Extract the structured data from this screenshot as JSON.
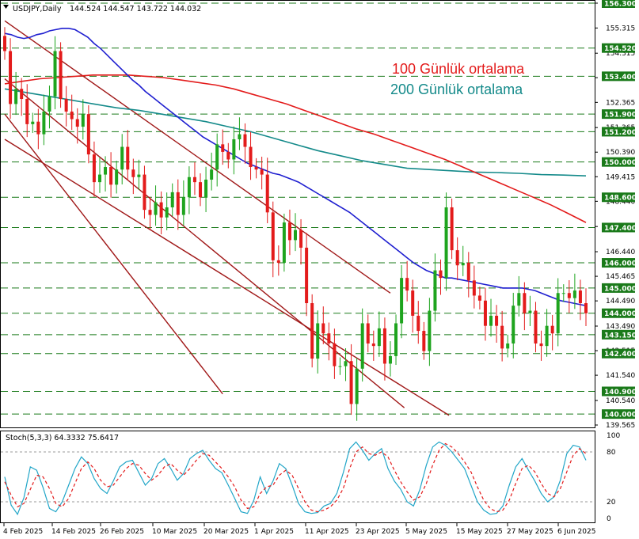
{
  "title": "USDJPY,Daily",
  "ohlc_text": "144.524 144.547 143.722 144.032",
  "legend": [
    {
      "label": "100 Günlük ortalama",
      "color": "#e31b1b"
    },
    {
      "label": "200 Günlük ortalama",
      "color": "#148a8a"
    }
  ],
  "stoch_label": "Stoch(5,3,3) 64.3332 75.6417",
  "colors": {
    "bull": "#1ea41e",
    "bear": "#e31b1b",
    "ma50": "#1f1fd0",
    "ma100": "#e31b1b",
    "ma200": "#148a8a",
    "channel": "#a01818",
    "levels": "#1a7a1a",
    "stoch_main": "#22a6c8",
    "stoch_signal": "#e31b1b"
  },
  "price_ticks": [
    "156.300",
    "155.315",
    "154.315",
    "153.345",
    "152.365",
    "151.365",
    "150.390",
    "149.415",
    "148.440",
    "147.440",
    "146.440",
    "145.465",
    "144.490",
    "143.490",
    "142.515",
    "141.540",
    "140.540",
    "139.565"
  ],
  "levels": [
    "156.300",
    "154.520",
    "153.400",
    "151.900",
    "151.200",
    "150.000",
    "148.600",
    "147.400",
    "146.000",
    "145.000",
    "144.000",
    "143.150",
    "142.400",
    "140.900",
    "140.000"
  ],
  "stoch_ticks": [
    "100",
    "80",
    "20",
    "0"
  ],
  "date_labels": [
    "4 Feb 2025",
    "14 Feb 2025",
    "26 Feb 2025",
    "10 Mar 2025",
    "20 Mar 2025",
    "1 Apr 2025",
    "11 Apr 2025",
    "23 Apr 2025",
    "5 May 2025",
    "15 May 2025",
    "27 May 2025",
    "6 Jun 2025"
  ],
  "chart_data": {
    "type": "candlestick",
    "symbol": "USDJPY",
    "timeframe": "Daily",
    "ylim": [
      139.5,
      156.3
    ],
    "stoch_ylim": [
      0,
      100
    ],
    "closes": [
      154.4,
      152.3,
      152.9,
      152.5,
      151.5,
      151.6,
      151.1,
      152.0,
      152.6,
      154.4,
      152.5,
      152.0,
      151.7,
      151.4,
      151.9,
      150.3,
      149.2,
      149.5,
      149.8,
      149.1,
      149.7,
      150.6,
      149.7,
      149.4,
      149.5,
      148.1,
      147.9,
      148.4,
      147.8,
      148.2,
      148.8,
      147.9,
      148.6,
      149.4,
      149.2,
      148.6,
      149.3,
      149.7,
      150.7,
      150.4,
      150.1,
      150.9,
      151.1,
      150.6,
      149.8,
      149.7,
      149.5,
      148.0,
      146.1,
      146.0,
      147.6,
      146.9,
      147.3,
      146.6,
      144.4,
      142.2,
      143.6,
      143.2,
      142.8,
      141.9,
      141.9,
      142.1,
      140.4,
      141.8,
      143.6,
      142.8,
      142.7,
      143.4,
      142.0,
      142.3,
      143.6,
      145.4,
      144.9,
      143.9,
      143.3,
      142.5,
      144.1,
      145.7,
      145.4,
      148.2,
      146.5,
      145.9,
      146.0,
      145.3,
      144.7,
      144.5,
      143.5,
      143.9,
      143.5,
      142.6,
      142.8,
      144.3,
      144.8,
      144.0,
      144.1,
      142.8,
      142.7,
      143.5,
      143.2,
      144.8,
      144.8,
      144.6,
      144.9,
      144.4,
      144.0
    ],
    "ma50": [
      155.1,
      155.05,
      154.95,
      154.9,
      154.95,
      155.05,
      155.1,
      155.2,
      155.25,
      155.3,
      155.3,
      155.25,
      155.1,
      154.95,
      154.7,
      154.5,
      154.25,
      154.0,
      153.75,
      153.5,
      153.25,
      153.05,
      152.8,
      152.6,
      152.4,
      152.2,
      152.0,
      151.8,
      151.6,
      151.4,
      151.2,
      151.0,
      150.85,
      150.7,
      150.55,
      150.4,
      150.25,
      150.1,
      149.95,
      149.85,
      149.75,
      149.65,
      149.55,
      149.5,
      149.4,
      149.3,
      149.2,
      149.05,
      148.9,
      148.75,
      148.6,
      148.45,
      148.3,
      148.15,
      148.0,
      147.8,
      147.6,
      147.4,
      147.2,
      147.0,
      146.8,
      146.6,
      146.4,
      146.2,
      146.0,
      145.85,
      145.7,
      145.6,
      145.5,
      145.4,
      145.4,
      145.35,
      145.3,
      145.25,
      145.2,
      145.15,
      145.1,
      145.05,
      145.0,
      145.0,
      145.0,
      145.0,
      144.95,
      144.9,
      144.8,
      144.7,
      144.6,
      144.5,
      144.45,
      144.4,
      144.35,
      144.3
    ],
    "ma100": [
      153.1,
      153.2,
      153.3,
      153.35,
      153.4,
      153.45,
      153.45,
      153.45,
      153.4,
      153.35,
      153.25,
      153.15,
      153.05,
      152.9,
      152.7,
      152.5,
      152.3,
      152.05,
      151.8,
      151.55,
      151.3,
      151.1,
      150.85,
      150.6,
      150.35,
      150.1,
      149.8,
      149.5,
      149.2,
      148.9,
      148.6,
      148.3,
      147.95,
      147.6
    ],
    "ma200": [
      152.9,
      152.75,
      152.6,
      152.45,
      152.3,
      152.15,
      152.05,
      151.9,
      151.75,
      151.6,
      151.4,
      151.2,
      150.95,
      150.7,
      150.45,
      150.25,
      150.05,
      149.9,
      149.75,
      149.7,
      149.65,
      149.6,
      149.58,
      149.55,
      149.5,
      149.48,
      149.45
    ],
    "stoch_main": [
      50,
      16,
      5,
      25,
      62,
      58,
      37,
      12,
      8,
      20,
      40,
      60,
      74,
      66,
      48,
      36,
      30,
      45,
      62,
      68,
      70,
      55,
      40,
      48,
      66,
      72,
      60,
      46,
      54,
      72,
      78,
      82,
      70,
      60,
      55,
      40,
      24,
      8,
      6,
      22,
      50,
      30,
      45,
      66,
      60,
      40,
      18,
      8,
      6,
      7,
      15,
      18,
      30,
      55,
      84,
      92,
      82,
      70,
      78,
      84,
      60,
      45,
      35,
      20,
      15,
      35,
      64,
      86,
      92,
      88,
      80,
      70,
      60,
      40,
      20,
      10,
      5,
      6,
      15,
      40,
      62,
      72,
      58,
      45,
      30,
      20,
      26,
      46,
      78,
      88,
      86,
      70
    ],
    "stoch_signal": [
      44,
      28,
      14,
      18,
      35,
      52,
      50,
      36,
      18,
      14,
      24,
      42,
      60,
      68,
      60,
      46,
      38,
      40,
      50,
      60,
      66,
      64,
      54,
      46,
      52,
      62,
      66,
      58,
      52,
      60,
      70,
      78,
      76,
      68,
      60,
      50,
      38,
      22,
      12,
      14,
      30,
      38,
      40,
      52,
      58,
      52,
      36,
      20,
      10,
      8,
      10,
      14,
      22,
      36,
      60,
      80,
      86,
      78,
      76,
      80,
      74,
      58,
      44,
      32,
      22,
      26,
      42,
      64,
      82,
      90,
      86,
      78,
      68,
      56,
      38,
      22,
      12,
      8,
      10,
      22,
      42,
      60,
      64,
      56,
      42,
      30,
      26,
      36,
      56,
      76,
      84,
      78
    ]
  }
}
